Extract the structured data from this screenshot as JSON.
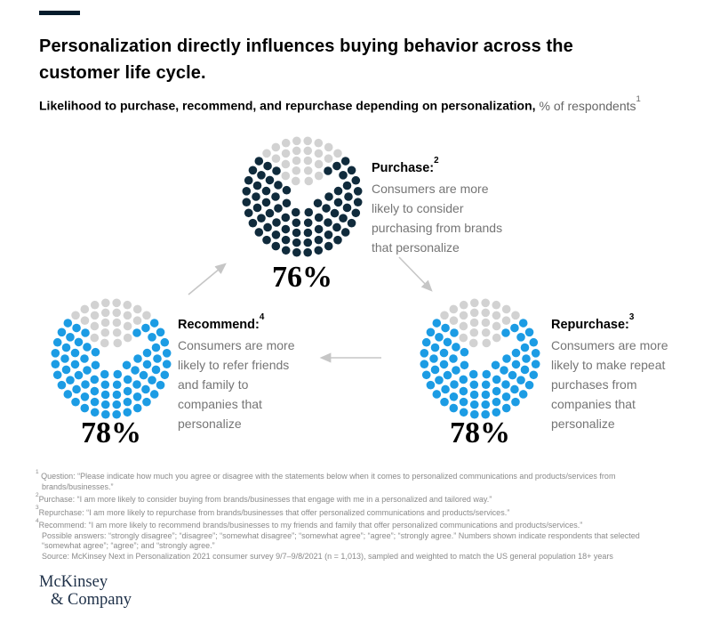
{
  "exhibit": {
    "keyline_color": "#051C2C",
    "title_lines": [
      "Personalization directly influences buying behavior across the",
      "customer life cycle."
    ],
    "subtitle_bold": "Likelihood to purchase, recommend, and repurchase depending on personalization,",
    "subtitle_regular": "% of respondents",
    "subtitle_marker": "1"
  },
  "chart_data": {
    "type": "dot-donut-cycle",
    "title": "Likelihood to purchase, recommend, and repurchase depending on personalization",
    "unit": "% of respondents",
    "legend_position": "none",
    "empty_color": "#D2D2D2",
    "arrow_color": "#C6C6C6",
    "dot_rings": {
      "counts": [
        8,
        14,
        20,
        26,
        32
      ],
      "radii": [
        19,
        30,
        41,
        52,
        63
      ],
      "dot_radius": 4.8
    },
    "series": [
      {
        "id": "purchase",
        "label": "Purchase:",
        "marker": "2",
        "value": 76,
        "value_label": "76%",
        "color": "#102B3C",
        "desc_lines": [
          "Consumers are more",
          "likely to consider",
          "purchasing from brands",
          "that personalize"
        ]
      },
      {
        "id": "recommend",
        "label": "Recommend:",
        "marker": "4",
        "value": 78,
        "value_label": "78%",
        "color": "#1C9CE4",
        "desc_lines": [
          "Consumers are more",
          "likely to refer friends",
          "and family to",
          "companies that",
          "personalize"
        ]
      },
      {
        "id": "repurchase",
        "label": "Repurchase:",
        "marker": "3",
        "value": 78,
        "value_label": "78%",
        "color": "#1C9CE4",
        "desc_lines": [
          "Consumers are more",
          "likely to make repeat",
          "purchases from",
          "companies that",
          "personalize"
        ]
      }
    ],
    "arrows": [
      {
        "from": "recommend",
        "to": "purchase"
      },
      {
        "from": "purchase",
        "to": "repurchase"
      },
      {
        "from": "repurchase",
        "to": "recommend"
      }
    ]
  },
  "footnotes": [
    {
      "marker": "1",
      "text": " Question: “Please indicate how much you agree or disagree with the statements below when it comes to personalized communications and products/services from brands/businesses.”"
    },
    {
      "marker": "2",
      "text": "Purchase: “I am more likely to consider buying from brands/businesses that engage with me in a personalized and tailored way.”"
    },
    {
      "marker": "3",
      "text": "Repurchase: “I am more likely to repurchase from brands/businesses that offer personalized communications and products/services.”"
    },
    {
      "marker": "4",
      "text": "Recommend: “I am more likely to recommend brands/businesses to my friends and family that offer personalized communications and products/services.”"
    },
    {
      "marker": "",
      "text": "Possible answers: “strongly disagree”; “disagree”; “somewhat disagree”; “somewhat agree”; “agree”; “strongly agree.” Numbers shown indicate respondents that selected “somewhat agree”; “agree”; and “strongly agree.”"
    },
    {
      "marker": "",
      "text": "Source: McKinsey Next in Personalization 2021 consumer survey 9/7–9/8/2021 (n = 1,013), sampled and weighted to match the US general population 18+ years"
    }
  ],
  "logo": {
    "line1": "McKinsey",
    "line2": "& Company"
  }
}
